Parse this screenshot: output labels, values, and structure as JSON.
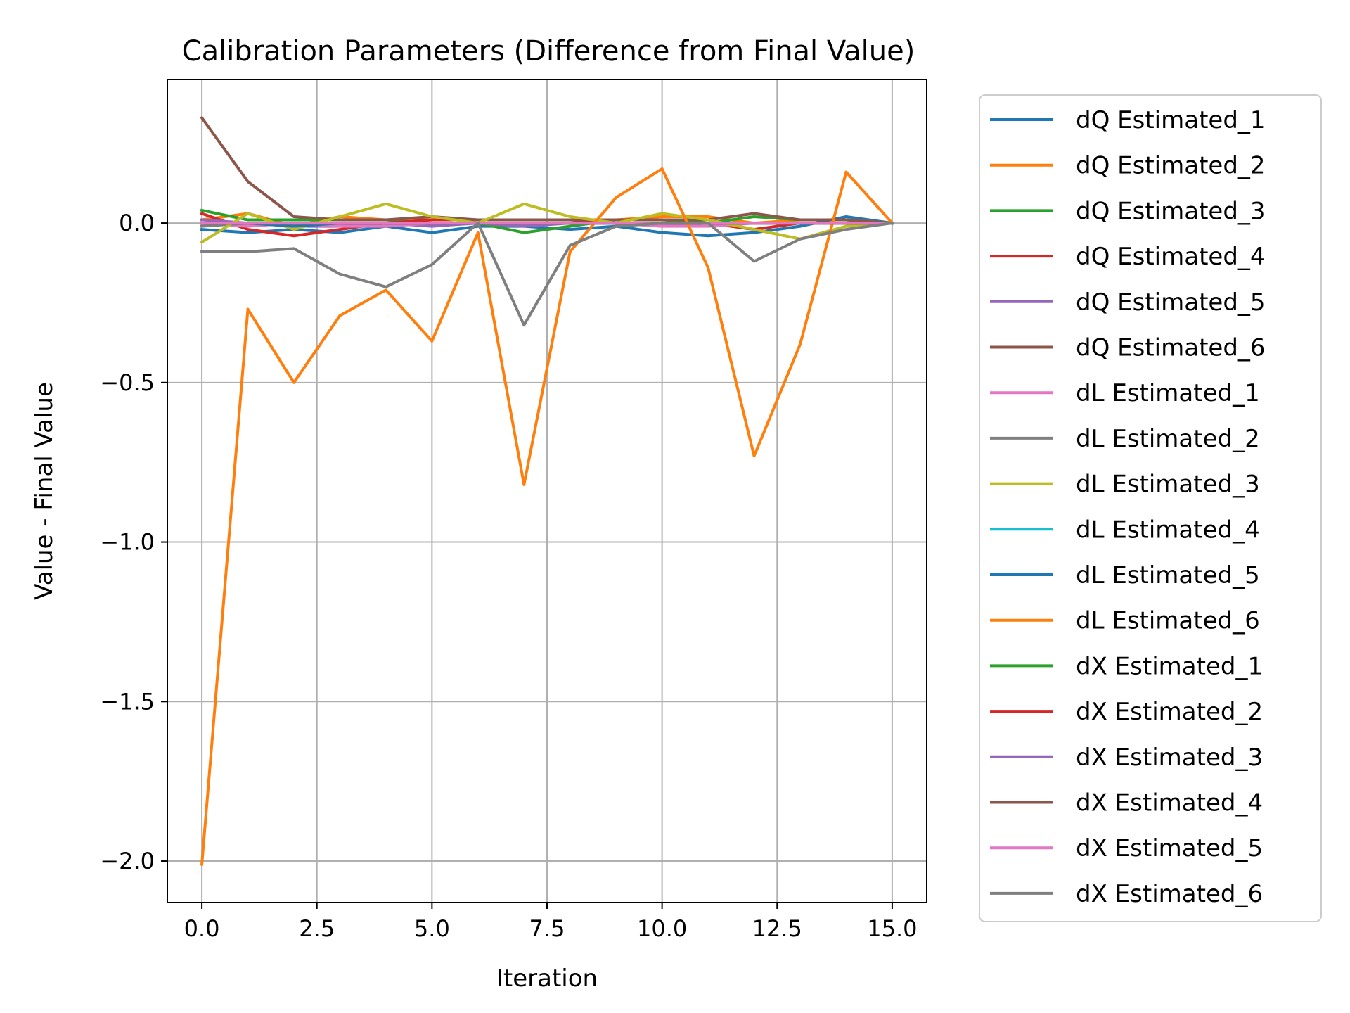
{
  "chart_data": {
    "type": "line",
    "title": "Calibration Parameters (Difference from Final Value)",
    "xlabel": "Iteration",
    "ylabel": "Value - Final Value",
    "xlim": [
      -0.75,
      15.75
    ],
    "ylim": [
      -2.13,
      0.45
    ],
    "xticks": [
      0,
      2.5,
      5,
      7.5,
      10,
      12.5,
      15
    ],
    "xtick_labels": [
      "0.0",
      "2.5",
      "5.0",
      "7.5",
      "10.0",
      "12.5",
      "15.0"
    ],
    "yticks": [
      0,
      -0.5,
      -1,
      -1.5,
      -2
    ],
    "ytick_labels": [
      "0.0",
      "−0.5",
      "−1.0",
      "−1.5",
      "−2.0"
    ],
    "grid": true,
    "legend_position": "outside-right",
    "x": [
      0,
      1,
      2,
      3,
      4,
      5,
      6,
      7,
      8,
      9,
      10,
      11,
      12,
      13,
      14,
      15
    ],
    "series": [
      {
        "name": "dQ Estimated_1",
        "color": "#1f77b4",
        "values": [
          -0.02,
          -0.03,
          -0.02,
          -0.03,
          -0.01,
          -0.03,
          -0.01,
          -0.01,
          -0.02,
          -0.01,
          -0.03,
          -0.04,
          -0.03,
          -0.01,
          0.02,
          0
        ]
      },
      {
        "name": "dQ Estimated_2",
        "color": "#ff7f0e",
        "values": [
          0.01,
          0.03,
          -0.01,
          0.02,
          0.01,
          0.01,
          0.01,
          0.01,
          0.01,
          0.01,
          0.02,
          0.02,
          0.0,
          0.01,
          0.01,
          0
        ]
      },
      {
        "name": "dQ Estimated_3",
        "color": "#2ca02c",
        "values": [
          0.04,
          0.01,
          0.01,
          0.01,
          0.01,
          0.0,
          0.0,
          -0.03,
          -0.01,
          0.01,
          0.01,
          0.0,
          0.02,
          0.01,
          0.01,
          0
        ]
      },
      {
        "name": "dQ Estimated_4",
        "color": "#d62728",
        "values": [
          0.03,
          -0.02,
          -0.04,
          -0.02,
          0.0,
          0.01,
          0.01,
          0.01,
          0.01,
          0.0,
          0.0,
          0.0,
          -0.02,
          0.0,
          0.0,
          0
        ]
      },
      {
        "name": "dQ Estimated_5",
        "color": "#9467bd",
        "values": [
          0.01,
          0.0,
          -0.01,
          -0.01,
          0.0,
          -0.01,
          0.0,
          -0.01,
          0.0,
          0.0,
          -0.01,
          0.0,
          0.0,
          0.0,
          0.0,
          0
        ]
      },
      {
        "name": "dQ Estimated_6",
        "color": "#8c564b",
        "values": [
          0.33,
          0.13,
          0.02,
          0.01,
          0.01,
          0.02,
          0.01,
          0.01,
          0.01,
          0.01,
          0.01,
          0.01,
          0.03,
          0.01,
          0.01,
          0
        ]
      },
      {
        "name": "dL Estimated_1",
        "color": "#e377c2",
        "values": [
          0.0,
          -0.01,
          0.0,
          -0.01,
          -0.01,
          0.0,
          0.0,
          0.0,
          0.0,
          0.0,
          -0.01,
          -0.01,
          0.0,
          0.0,
          0.0,
          0
        ]
      },
      {
        "name": "dL Estimated_2",
        "color": "#7f7f7f",
        "values": [
          -0.01,
          0.0,
          0.0,
          0.0,
          0.0,
          0.0,
          0.0,
          0.0,
          0.0,
          0.0,
          0.0,
          0.0,
          0.0,
          0.0,
          0.0,
          0
        ]
      },
      {
        "name": "dL Estimated_3",
        "color": "#bcbd22",
        "values": [
          -0.06,
          0.03,
          -0.02,
          0.02,
          0.06,
          0.02,
          0.0,
          0.06,
          0.02,
          0.0,
          0.03,
          0.01,
          -0.02,
          -0.05,
          -0.01,
          0
        ]
      },
      {
        "name": "dL Estimated_4",
        "color": "#17becf",
        "values": [
          0.0,
          0.0,
          0.0,
          0.0,
          0.0,
          0.0,
          0.0,
          0.0,
          0.0,
          0.0,
          0.0,
          0.0,
          0.0,
          0.0,
          0.0,
          0
        ]
      },
      {
        "name": "dL Estimated_5",
        "color": "#1f77b4",
        "values": [
          0.0,
          0.0,
          -0.01,
          0.0,
          0.0,
          0.0,
          0.0,
          0.0,
          0.0,
          0.0,
          0.0,
          0.0,
          0.0,
          0.0,
          0.0,
          0
        ]
      },
      {
        "name": "dL Estimated_6",
        "color": "#ff7f0e",
        "values": [
          -2.01,
          -0.27,
          -0.5,
          -0.29,
          -0.21,
          -0.37,
          -0.03,
          -0.82,
          -0.09,
          0.08,
          0.17,
          -0.14,
          -0.73,
          -0.38,
          0.16,
          0
        ]
      },
      {
        "name": "dX Estimated_1",
        "color": "#2ca02c",
        "values": [
          0.0,
          0.0,
          0.0,
          0.0,
          0.0,
          0.0,
          0.0,
          0.0,
          0.0,
          0.0,
          0.0,
          0.0,
          0.0,
          0.0,
          0.0,
          0
        ]
      },
      {
        "name": "dX Estimated_2",
        "color": "#d62728",
        "values": [
          0.0,
          0.0,
          0.0,
          0.0,
          0.0,
          0.0,
          0.0,
          0.0,
          0.0,
          0.0,
          0.0,
          0.0,
          0.0,
          0.0,
          0.0,
          0
        ]
      },
      {
        "name": "dX Estimated_3",
        "color": "#9467bd",
        "values": [
          0.0,
          0.0,
          0.0,
          0.0,
          0.0,
          0.0,
          0.0,
          0.0,
          0.0,
          0.0,
          0.0,
          0.0,
          0.0,
          0.0,
          0.0,
          0
        ]
      },
      {
        "name": "dX Estimated_4",
        "color": "#8c564b",
        "values": [
          0.0,
          0.0,
          0.0,
          0.0,
          0.0,
          0.0,
          0.0,
          0.0,
          0.0,
          0.0,
          0.0,
          0.0,
          0.0,
          0.0,
          0.0,
          0
        ]
      },
      {
        "name": "dX Estimated_5",
        "color": "#e377c2",
        "values": [
          0.0,
          0.0,
          0.0,
          0.0,
          0.0,
          0.0,
          0.0,
          0.0,
          0.0,
          0.0,
          0.0,
          0.0,
          0.0,
          0.0,
          0.0,
          0
        ]
      },
      {
        "name": "dX Estimated_6",
        "color": "#7f7f7f",
        "values": [
          -0.09,
          -0.09,
          -0.08,
          -0.16,
          -0.2,
          -0.13,
          0.0,
          -0.32,
          -0.07,
          -0.01,
          0.0,
          0.0,
          -0.12,
          -0.05,
          -0.02,
          0
        ]
      }
    ]
  }
}
